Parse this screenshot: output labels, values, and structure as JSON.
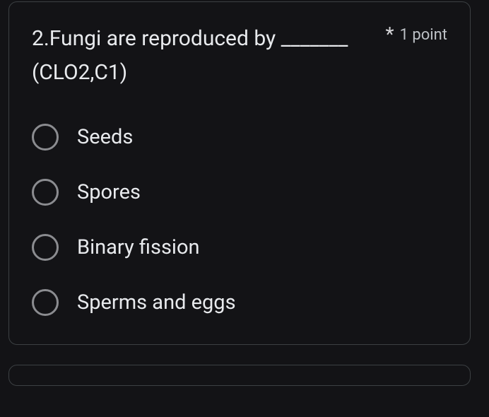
{
  "question": {
    "text": "2.Fungi are reproduced by _______ (CLO2,C1)",
    "required_star": "*",
    "points_label": "1 point",
    "options": [
      {
        "label": "Seeds"
      },
      {
        "label": "Spores"
      },
      {
        "label": "Binary fission"
      },
      {
        "label": "Sperms and eggs"
      }
    ]
  },
  "styles": {
    "background_color": "#131316",
    "card_border_color": "#3c4043",
    "text_color": "#e8eaed",
    "muted_text_color": "#bdc1c6",
    "radio_border_color": "#8b8c90",
    "question_fontsize": 30,
    "option_fontsize": 29,
    "points_fontsize": 22
  }
}
